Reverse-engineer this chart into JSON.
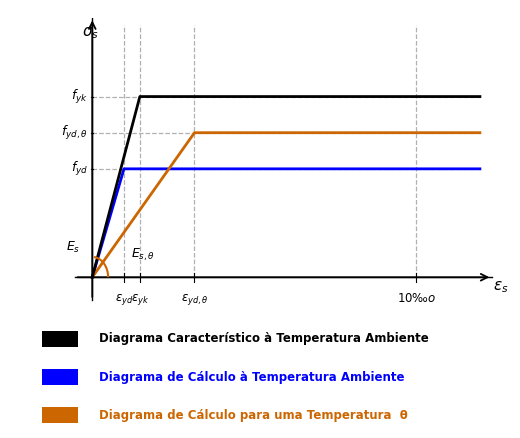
{
  "background_color": "#ffffff",
  "grid_color": "#b0b0b0",
  "x_max": 11.0,
  "y_max": 1.15,
  "eps_yd": 0.9,
  "eps_yk": 1.35,
  "eps_yd_theta": 2.9,
  "eps_10": 9.2,
  "f_yd": 0.48,
  "f_yk": 0.8,
  "f_yd_theta": 0.64,
  "black_color": "#000000",
  "blue_color": "#0000ff",
  "orange_color": "#cc6600",
  "legend_items": [
    {
      "label": "Diagrama Característico à Temperatura Ambiente",
      "color": "#000000"
    },
    {
      "label": "Diagrama de Cálculo à Temperatura Ambiente",
      "color": "#0000ff"
    },
    {
      "label": "Diagrama de Cálculo para uma Temperatura  θ",
      "color": "#cc6600"
    }
  ]
}
